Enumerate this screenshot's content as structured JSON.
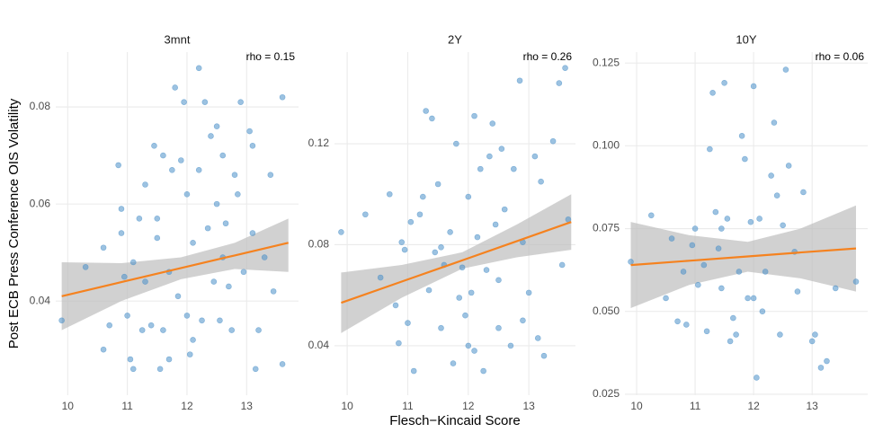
{
  "chart_data": [
    {
      "type": "scatter",
      "title": "3mnt",
      "annotation": "rho = 0.15",
      "ylabel": "Post ECB Press Conference OIS Volatility",
      "color": "#4a90c8",
      "fit_color": "#f5821f",
      "band_color": "#bdbdbd",
      "grid": true,
      "xlim": [
        9.8,
        13.87
      ],
      "ylim": [
        0.0206,
        0.0913
      ],
      "xticks": [
        10,
        11,
        12,
        13
      ],
      "yticks": [
        0.04,
        0.06,
        0.08
      ],
      "x": [
        9.9,
        10.3,
        10.6,
        10.6,
        10.7,
        10.85,
        10.9,
        10.9,
        10.95,
        11.0,
        11.05,
        11.1,
        11.1,
        11.2,
        11.25,
        11.3,
        11.3,
        11.4,
        11.45,
        11.5,
        11.5,
        11.6,
        11.6,
        11.7,
        11.75,
        11.8,
        11.85,
        11.9,
        11.95,
        12.0,
        12.0,
        12.05,
        12.1,
        12.2,
        12.2,
        12.25,
        12.3,
        12.35,
        12.4,
        12.45,
        12.5,
        12.5,
        12.55,
        12.6,
        12.65,
        12.7,
        12.75,
        12.8,
        12.9,
        12.95,
        13.05,
        13.1,
        13.1,
        13.15,
        13.2,
        13.3,
        13.4,
        13.45,
        13.6,
        13.6,
        12.6,
        11.55,
        11.7,
        12.1,
        12.85
      ],
      "y": [
        0.036,
        0.047,
        0.03,
        0.051,
        0.035,
        0.068,
        0.059,
        0.054,
        0.045,
        0.037,
        0.028,
        0.026,
        0.048,
        0.057,
        0.034,
        0.064,
        0.044,
        0.035,
        0.072,
        0.057,
        0.053,
        0.07,
        0.034,
        0.046,
        0.067,
        0.084,
        0.041,
        0.069,
        0.081,
        0.037,
        0.062,
        0.029,
        0.052,
        0.088,
        0.067,
        0.036,
        0.081,
        0.055,
        0.074,
        0.044,
        0.076,
        0.06,
        0.036,
        0.07,
        0.056,
        0.043,
        0.034,
        0.066,
        0.081,
        0.046,
        0.075,
        0.072,
        0.054,
        0.026,
        0.034,
        0.049,
        0.066,
        0.042,
        0.082,
        0.027,
        0.049,
        0.026,
        0.028,
        0.032,
        0.062
      ],
      "fit_x": [
        9.9,
        10.9,
        11.9,
        12.8,
        13.7
      ],
      "fit_y": [
        0.041,
        0.0439,
        0.0468,
        0.0494,
        0.052
      ],
      "band_lower": [
        0.034,
        0.04,
        0.0445,
        0.0466,
        0.046
      ],
      "band_upper": [
        0.048,
        0.0478,
        0.049,
        0.052,
        0.057
      ]
    },
    {
      "type": "scatter",
      "title": "2Y",
      "annotation": "rho = 0.26",
      "xlabel": "Flesch−Kincaid Score",
      "color": "#4a90c8",
      "fit_color": "#f5821f",
      "band_color": "#bdbdbd",
      "grid": true,
      "xlim": [
        9.79,
        13.77
      ],
      "ylim": [
        0.0204,
        0.1563
      ],
      "xticks": [
        10,
        11,
        12,
        13
      ],
      "yticks": [
        0.04,
        0.08,
        0.12
      ],
      "x": [
        9.9,
        10.3,
        10.55,
        10.7,
        10.8,
        10.85,
        10.9,
        10.95,
        11.0,
        11.05,
        11.1,
        11.2,
        11.3,
        11.35,
        11.4,
        11.45,
        11.5,
        11.55,
        11.6,
        11.7,
        11.75,
        11.8,
        11.85,
        11.9,
        11.95,
        12.0,
        12.05,
        12.1,
        12.1,
        12.15,
        12.2,
        12.25,
        12.3,
        12.35,
        12.4,
        12.45,
        12.5,
        12.55,
        12.6,
        12.7,
        12.75,
        12.85,
        12.9,
        13.0,
        13.1,
        13.15,
        13.2,
        13.25,
        13.4,
        13.5,
        13.55,
        13.6,
        13.65,
        12.0,
        11.55,
        12.5,
        11.25,
        12.9
      ],
      "y": [
        0.085,
        0.092,
        0.067,
        0.1,
        0.056,
        0.041,
        0.081,
        0.078,
        0.049,
        0.089,
        0.03,
        0.092,
        0.133,
        0.062,
        0.13,
        0.077,
        0.104,
        0.047,
        0.072,
        0.085,
        0.033,
        0.12,
        0.059,
        0.071,
        0.052,
        0.099,
        0.061,
        0.131,
        0.038,
        0.083,
        0.11,
        0.03,
        0.07,
        0.115,
        0.128,
        0.088,
        0.047,
        0.118,
        0.094,
        0.04,
        0.11,
        0.145,
        0.081,
        0.061,
        0.115,
        0.043,
        0.105,
        0.036,
        0.121,
        0.144,
        0.072,
        0.15,
        0.09,
        0.04,
        0.079,
        0.066,
        0.099,
        0.05
      ],
      "fit_x": [
        9.9,
        10.9,
        11.9,
        12.8,
        13.7
      ],
      "fit_y": [
        0.057,
        0.0654,
        0.0738,
        0.0814,
        0.089
      ],
      "band_lower": [
        0.045,
        0.059,
        0.0705,
        0.075,
        0.078
      ],
      "band_upper": [
        0.069,
        0.072,
        0.077,
        0.088,
        0.1
      ]
    },
    {
      "type": "scatter",
      "title": "10Y",
      "annotation": "rho = 0.06",
      "color": "#4a90c8",
      "fit_color": "#f5821f",
      "band_color": "#bdbdbd",
      "grid": true,
      "xlim": [
        9.8,
        13.95
      ],
      "ylim": [
        0.0247,
        0.1283
      ],
      "xticks": [
        10,
        11,
        12,
        13
      ],
      "yticks": [
        0.025,
        {
          "value": 0.05,
          "label": "0.050"
        },
        0.075,
        {
          "value": 0.1,
          "label": "0.100"
        },
        0.125
      ],
      "x": [
        9.9,
        10.25,
        10.5,
        10.6,
        10.7,
        10.8,
        10.85,
        10.95,
        11.0,
        11.05,
        11.15,
        11.25,
        11.3,
        11.35,
        11.4,
        11.45,
        11.5,
        11.55,
        11.6,
        11.65,
        11.7,
        11.75,
        11.8,
        11.85,
        11.9,
        11.95,
        12.0,
        12.05,
        12.1,
        12.15,
        12.2,
        12.3,
        12.35,
        12.4,
        12.45,
        12.5,
        12.55,
        12.6,
        12.7,
        12.75,
        12.85,
        13.0,
        13.05,
        13.15,
        13.25,
        13.4,
        13.75,
        11.45,
        12.0,
        11.2
      ],
      "y": [
        0.065,
        0.079,
        0.054,
        0.072,
        0.047,
        0.062,
        0.046,
        0.07,
        0.075,
        0.058,
        0.064,
        0.099,
        0.116,
        0.08,
        0.069,
        0.057,
        0.119,
        0.078,
        0.041,
        0.048,
        0.043,
        0.062,
        0.103,
        0.096,
        0.054,
        0.077,
        0.118,
        0.03,
        0.078,
        0.05,
        0.062,
        0.091,
        0.107,
        0.085,
        0.043,
        0.076,
        0.123,
        0.094,
        0.068,
        0.056,
        0.086,
        0.041,
        0.043,
        0.033,
        0.035,
        0.057,
        0.059,
        0.075,
        0.054,
        0.044
      ],
      "fit_x": [
        9.9,
        10.9,
        11.9,
        12.8,
        13.75
      ],
      "fit_y": [
        0.064,
        0.0653,
        0.0666,
        0.0678,
        0.069
      ],
      "band_lower": [
        0.051,
        0.058,
        0.062,
        0.06,
        0.056
      ],
      "band_upper": [
        0.077,
        0.073,
        0.071,
        0.075,
        0.082
      ]
    }
  ]
}
